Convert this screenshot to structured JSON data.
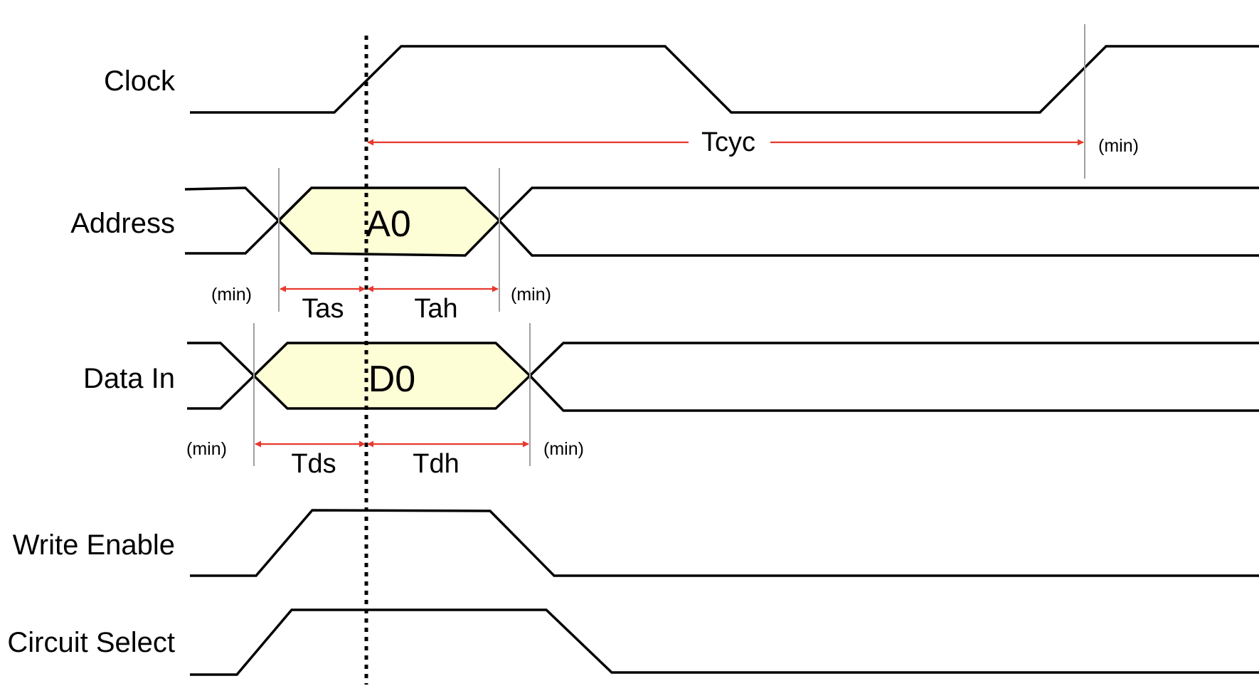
{
  "signals": {
    "clock": "Clock",
    "address": "Address",
    "data_in": "Data In",
    "write_enable": "Write Enable",
    "circuit_select": "Circuit Select"
  },
  "bus_values": {
    "address": "A0",
    "data_in": "D0"
  },
  "timings": {
    "tcyc": "Tcyc",
    "tas": "Tas",
    "tah": "Tah",
    "tds": "Tds",
    "tdh": "Tdh"
  },
  "qualifier": "(min)",
  "colors": {
    "waveform": "#000000",
    "bus_fill": "#fdfdd6",
    "timing_arrow": "#e8382d",
    "guide_line": "#a0a0a0"
  }
}
